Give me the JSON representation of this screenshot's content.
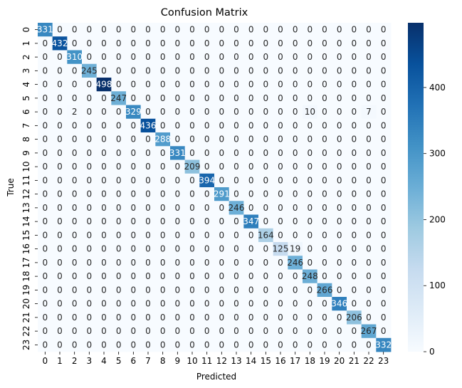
{
  "chart_data": {
    "type": "heatmap",
    "title": "Confusion Matrix",
    "xlabel": "Predicted",
    "ylabel": "True",
    "x_categories": [
      "0",
      "1",
      "2",
      "3",
      "4",
      "5",
      "6",
      "7",
      "8",
      "9",
      "10",
      "11",
      "12",
      "13",
      "14",
      "15",
      "16",
      "17",
      "18",
      "19",
      "20",
      "21",
      "22",
      "23"
    ],
    "y_categories": [
      "0",
      "1",
      "2",
      "3",
      "4",
      "5",
      "6",
      "7",
      "8",
      "9",
      "10",
      "11",
      "12",
      "13",
      "14",
      "15",
      "16",
      "17",
      "18",
      "19",
      "20",
      "21",
      "22",
      "23"
    ],
    "matrix": [
      [
        331,
        0,
        0,
        0,
        0,
        0,
        0,
        0,
        0,
        0,
        0,
        0,
        0,
        0,
        0,
        0,
        0,
        0,
        0,
        0,
        0,
        0,
        0,
        0
      ],
      [
        0,
        432,
        0,
        0,
        0,
        0,
        0,
        0,
        0,
        0,
        0,
        0,
        0,
        0,
        0,
        0,
        0,
        0,
        0,
        0,
        0,
        0,
        0,
        0
      ],
      [
        0,
        0,
        310,
        0,
        0,
        0,
        0,
        0,
        0,
        0,
        0,
        0,
        0,
        0,
        0,
        0,
        0,
        0,
        0,
        0,
        0,
        0,
        0,
        0
      ],
      [
        0,
        0,
        0,
        245,
        0,
        0,
        0,
        0,
        0,
        0,
        0,
        0,
        0,
        0,
        0,
        0,
        0,
        0,
        0,
        0,
        0,
        0,
        0,
        0
      ],
      [
        0,
        0,
        0,
        0,
        498,
        0,
        0,
        0,
        0,
        0,
        0,
        0,
        0,
        0,
        0,
        0,
        0,
        0,
        0,
        0,
        0,
        0,
        0,
        0
      ],
      [
        0,
        0,
        0,
        0,
        0,
        247,
        0,
        0,
        0,
        0,
        0,
        0,
        0,
        0,
        0,
        0,
        0,
        0,
        0,
        0,
        0,
        0,
        0,
        0
      ],
      [
        0,
        0,
        2,
        0,
        0,
        0,
        329,
        0,
        0,
        0,
        0,
        0,
        0,
        0,
        0,
        0,
        0,
        0,
        10,
        0,
        0,
        0,
        7,
        0
      ],
      [
        0,
        0,
        0,
        0,
        0,
        0,
        0,
        436,
        0,
        0,
        0,
        0,
        0,
        0,
        0,
        0,
        0,
        0,
        0,
        0,
        0,
        0,
        0,
        0
      ],
      [
        0,
        0,
        0,
        0,
        0,
        0,
        0,
        0,
        288,
        0,
        0,
        0,
        0,
        0,
        0,
        0,
        0,
        0,
        0,
        0,
        0,
        0,
        0,
        0
      ],
      [
        0,
        0,
        0,
        0,
        0,
        0,
        0,
        0,
        0,
        331,
        0,
        0,
        0,
        0,
        0,
        0,
        0,
        0,
        0,
        0,
        0,
        0,
        0,
        0
      ],
      [
        0,
        0,
        0,
        0,
        0,
        0,
        0,
        0,
        0,
        0,
        209,
        0,
        0,
        0,
        0,
        0,
        0,
        0,
        0,
        0,
        0,
        0,
        0,
        0
      ],
      [
        0,
        0,
        0,
        0,
        0,
        0,
        0,
        0,
        0,
        0,
        0,
        394,
        0,
        0,
        0,
        0,
        0,
        0,
        0,
        0,
        0,
        0,
        0,
        0
      ],
      [
        0,
        0,
        0,
        0,
        0,
        0,
        0,
        0,
        0,
        0,
        0,
        0,
        291,
        0,
        0,
        0,
        0,
        0,
        0,
        0,
        0,
        0,
        0,
        0
      ],
      [
        0,
        0,
        0,
        0,
        0,
        0,
        0,
        0,
        0,
        0,
        0,
        0,
        0,
        246,
        0,
        0,
        0,
        0,
        0,
        0,
        0,
        0,
        0,
        0
      ],
      [
        0,
        0,
        0,
        0,
        0,
        0,
        0,
        0,
        0,
        0,
        0,
        0,
        0,
        0,
        347,
        0,
        0,
        0,
        0,
        0,
        0,
        0,
        0,
        0
      ],
      [
        0,
        0,
        0,
        0,
        0,
        0,
        0,
        0,
        0,
        0,
        0,
        0,
        0,
        0,
        0,
        164,
        0,
        0,
        0,
        0,
        0,
        0,
        0,
        0
      ],
      [
        0,
        0,
        0,
        0,
        0,
        0,
        0,
        0,
        0,
        0,
        0,
        0,
        0,
        0,
        0,
        0,
        125,
        19,
        0,
        0,
        0,
        0,
        0,
        0
      ],
      [
        0,
        0,
        0,
        0,
        0,
        0,
        0,
        0,
        0,
        0,
        0,
        0,
        0,
        0,
        0,
        0,
        0,
        246,
        0,
        0,
        0,
        0,
        0,
        0
      ],
      [
        0,
        0,
        0,
        0,
        0,
        0,
        0,
        0,
        0,
        0,
        0,
        0,
        0,
        0,
        0,
        0,
        0,
        0,
        248,
        0,
        0,
        0,
        0,
        0
      ],
      [
        0,
        0,
        0,
        0,
        0,
        0,
        0,
        0,
        0,
        0,
        0,
        0,
        0,
        0,
        0,
        0,
        0,
        0,
        0,
        266,
        0,
        0,
        0,
        0
      ],
      [
        0,
        0,
        0,
        0,
        0,
        0,
        0,
        0,
        0,
        0,
        0,
        0,
        0,
        0,
        0,
        0,
        0,
        0,
        0,
        0,
        346,
        0,
        0,
        0
      ],
      [
        0,
        0,
        0,
        0,
        0,
        0,
        0,
        0,
        0,
        0,
        0,
        0,
        0,
        0,
        0,
        0,
        0,
        0,
        0,
        0,
        0,
        206,
        0,
        0
      ],
      [
        0,
        0,
        0,
        0,
        0,
        0,
        0,
        0,
        0,
        0,
        0,
        0,
        0,
        0,
        0,
        0,
        0,
        0,
        0,
        0,
        0,
        0,
        267,
        0
      ],
      [
        0,
        0,
        0,
        0,
        0,
        0,
        0,
        0,
        0,
        0,
        0,
        0,
        0,
        0,
        0,
        0,
        0,
        0,
        0,
        0,
        0,
        0,
        0,
        332
      ]
    ],
    "colormap": "Blues",
    "colormap_stops": [
      "#f7fbff",
      "#deebf7",
      "#c6dbef",
      "#9ecae1",
      "#6baed6",
      "#4292c6",
      "#2171b5",
      "#08519c",
      "#08306b"
    ],
    "vmin": 0,
    "vmax": 498,
    "colorbar_ticks": [
      0,
      100,
      200,
      300,
      400
    ],
    "annotation_color_dark": "#262626",
    "annotation_color_light": "#ffffff",
    "legend": "colorbar-right",
    "grid": false
  }
}
